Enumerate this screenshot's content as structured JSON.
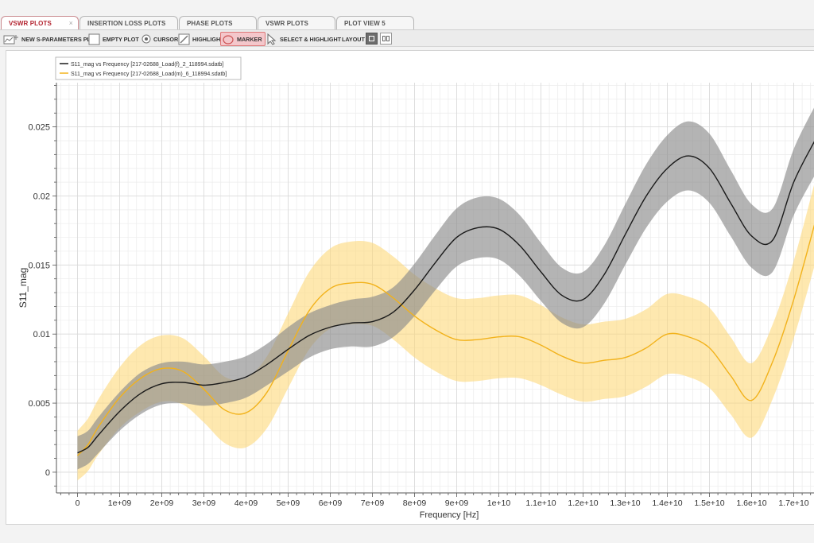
{
  "tabs": [
    {
      "label": "VSWR PLOTS",
      "active": true
    },
    {
      "label": "INSERTION LOSS PLOTS",
      "active": false
    },
    {
      "label": "PHASE PLOTS",
      "active": false
    },
    {
      "label": "VSWR PLOTS",
      "active": false
    },
    {
      "label": "PLOT VIEW 5",
      "active": false
    }
  ],
  "tab_close_glyph": "×",
  "toolbar": {
    "new_sparams": "NEW S-PARAMETERS PLOT",
    "empty_plot": "EMPTY PLOT",
    "cursor": "CURSOR",
    "highlight": "HIGHLIGHT",
    "marker": "MARKER",
    "select_highlight": "SELECT & HIGHLIGHT",
    "layout": "LAYOUT"
  },
  "colors": {
    "series1": "#1a1a1a",
    "series1_band": "#8c8c8c",
    "series2": "#f2b21b",
    "series2_band": "#fdd97a",
    "active_tab": "#b32430",
    "marker_bg": "#f4c7cb"
  },
  "chart_data": {
    "type": "line",
    "xlabel": "Frequency [Hz]",
    "ylabel": "S11_mag",
    "xlim": [
      -500000000,
      17500000000
    ],
    "ylim": [
      -0.0015,
      0.0282
    ],
    "x_ticks": [
      0,
      1000000000,
      2000000000,
      3000000000,
      4000000000,
      5000000000,
      6000000000,
      7000000000,
      8000000000,
      9000000000,
      10000000000,
      11000000000,
      12000000000,
      13000000000,
      14000000000,
      15000000000,
      16000000000,
      17000000000
    ],
    "x_tick_labels": [
      "0",
      "1e+09",
      "2e+09",
      "3e+09",
      "4e+09",
      "5e+09",
      "6e+09",
      "7e+09",
      "8e+09",
      "9e+09",
      "1e+10",
      "1.1e+10",
      "1.2e+10",
      "1.3e+10",
      "1.4e+10",
      "1.5e+10",
      "1.6e+10",
      "1.7e+10"
    ],
    "y_ticks": [
      0,
      0.005,
      0.01,
      0.015,
      0.02,
      0.025
    ],
    "y_tick_labels": [
      "0",
      "0.005",
      "0.01",
      "0.015",
      "0.02",
      "0.025"
    ],
    "grid": true,
    "legend_position": "top-left",
    "series": [
      {
        "name": "S11_mag vs Frequency [217-02688_Load(f)_2_118994.sdatb]",
        "x": [
          0,
          250000000,
          500000000,
          1000000000,
          1500000000,
          2000000000,
          2500000000,
          3000000000,
          3500000000,
          4000000000,
          4500000000,
          5000000000,
          5500000000,
          6000000000,
          6500000000,
          7000000000,
          7500000000,
          8000000000,
          8500000000,
          9000000000,
          9500000000,
          10000000000,
          10500000000,
          11000000000,
          11500000000,
          12000000000,
          12500000000,
          13000000000,
          13500000000,
          14000000000,
          14500000000,
          15000000000,
          15500000000,
          16000000000,
          16500000000,
          17000000000,
          17500000000
        ],
        "y": [
          0.0014,
          0.0018,
          0.0027,
          0.0044,
          0.0057,
          0.0064,
          0.0065,
          0.0063,
          0.0065,
          0.0069,
          0.0078,
          0.0089,
          0.0099,
          0.0105,
          0.0108,
          0.0109,
          0.0116,
          0.0132,
          0.0152,
          0.017,
          0.0177,
          0.0176,
          0.0164,
          0.0145,
          0.0128,
          0.0125,
          0.0143,
          0.0172,
          0.02,
          0.022,
          0.0229,
          0.022,
          0.0195,
          0.0171,
          0.0168,
          0.021,
          0.024
        ],
        "band_halfwidth": [
          0.0012,
          0.0012,
          0.0013,
          0.0014,
          0.0015,
          0.0015,
          0.0015,
          0.0015,
          0.0015,
          0.0015,
          0.0015,
          0.0016,
          0.0016,
          0.0016,
          0.0017,
          0.0018,
          0.0018,
          0.0019,
          0.002,
          0.0021,
          0.0022,
          0.0022,
          0.0022,
          0.0021,
          0.002,
          0.002,
          0.0021,
          0.0022,
          0.0023,
          0.0024,
          0.0025,
          0.0025,
          0.0024,
          0.0023,
          0.0023,
          0.0024,
          0.0025
        ]
      },
      {
        "name": "S11_mag vs Frequency [217-02688_Load(m)_6_118994.sdatb]",
        "x": [
          0,
          250000000,
          500000000,
          1000000000,
          1500000000,
          2000000000,
          2500000000,
          3000000000,
          3500000000,
          4000000000,
          4500000000,
          5000000000,
          5500000000,
          6000000000,
          6500000000,
          7000000000,
          7500000000,
          8000000000,
          8500000000,
          9000000000,
          9500000000,
          10000000000,
          10500000000,
          11000000000,
          11500000000,
          12000000000,
          12500000000,
          13000000000,
          13500000000,
          14000000000,
          14500000000,
          15000000000,
          15500000000,
          16000000000,
          16500000000,
          17000000000,
          17500000000
        ],
        "y": [
          0.0012,
          0.002,
          0.0033,
          0.0054,
          0.0068,
          0.0075,
          0.0073,
          0.006,
          0.0045,
          0.0043,
          0.0058,
          0.0088,
          0.0117,
          0.0133,
          0.0137,
          0.0136,
          0.0126,
          0.0113,
          0.0103,
          0.0096,
          0.0096,
          0.0098,
          0.0098,
          0.0092,
          0.0084,
          0.0079,
          0.0081,
          0.0083,
          0.009,
          0.01,
          0.0098,
          0.009,
          0.007,
          0.0052,
          0.008,
          0.0125,
          0.018
        ],
        "band_halfwidth": [
          0.0018,
          0.0019,
          0.002,
          0.0022,
          0.0024,
          0.0024,
          0.0024,
          0.0024,
          0.0024,
          0.0025,
          0.0026,
          0.0027,
          0.0028,
          0.0029,
          0.003,
          0.003,
          0.003,
          0.003,
          0.003,
          0.003,
          0.003,
          0.003,
          0.003,
          0.0029,
          0.0028,
          0.0028,
          0.0028,
          0.0028,
          0.0028,
          0.0029,
          0.0029,
          0.0029,
          0.0028,
          0.0027,
          0.0027,
          0.0028,
          0.003
        ]
      }
    ]
  }
}
